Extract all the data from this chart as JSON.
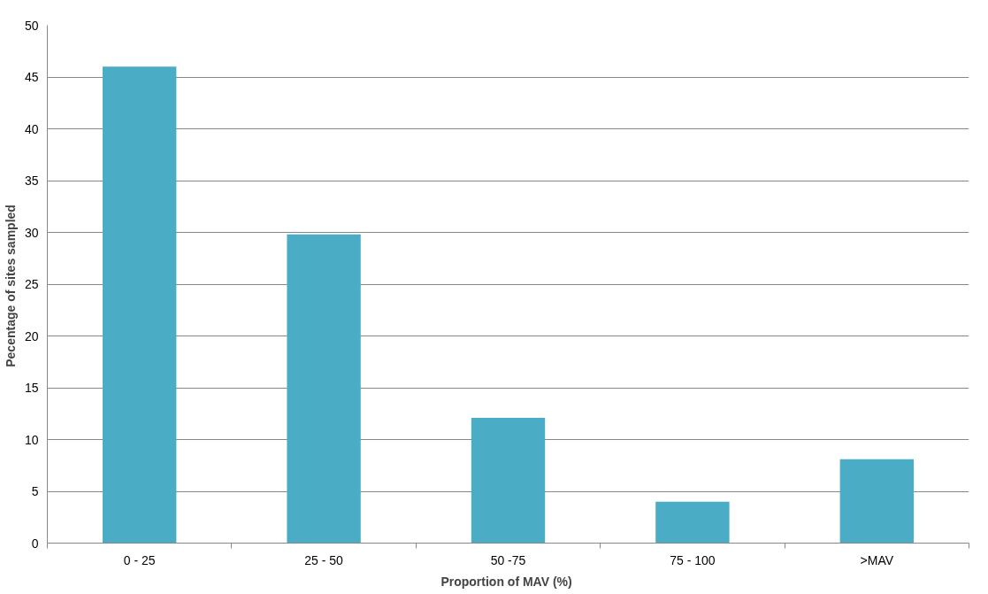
{
  "chart_data": {
    "type": "bar",
    "xlabel": "Proportion  of MAV (%)",
    "ylabel": "Pecentage of sites  sampled",
    "categories": [
      "0 - 25",
      "25 - 50",
      "50 -75",
      "75 - 100",
      ">MAV"
    ],
    "values": [
      46.0,
      29.8,
      12.1,
      4.0,
      8.1
    ],
    "color": "#4bacc6",
    "ylim": [
      0,
      50
    ],
    "yticks": [
      0,
      5,
      10,
      15,
      20,
      25,
      30,
      35,
      40,
      45,
      50
    ],
    "grid": "y"
  }
}
